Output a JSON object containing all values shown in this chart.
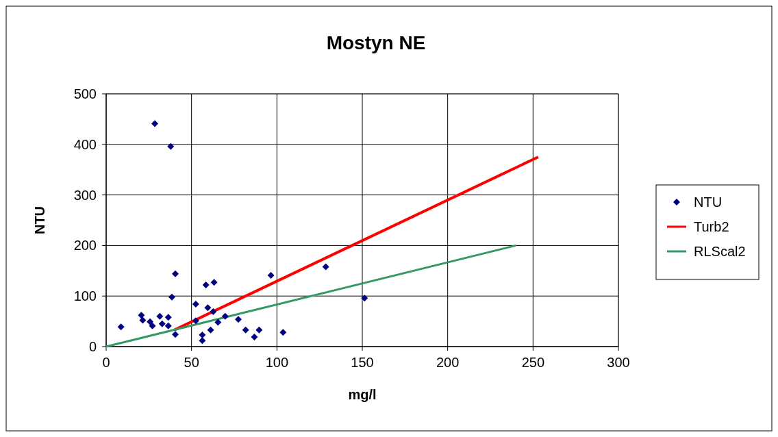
{
  "chart_data": {
    "type": "scatter",
    "title": "Mostyn NE",
    "xlabel": "mg/l",
    "ylabel": "NTU",
    "xlim": [
      0,
      300
    ],
    "ylim": [
      0,
      500
    ],
    "xticks": [
      0,
      50,
      100,
      150,
      200,
      250,
      300
    ],
    "yticks": [
      0,
      100,
      200,
      300,
      400,
      500
    ],
    "grid": true,
    "legend": "right",
    "series": [
      {
        "name": "NTU",
        "marker": "diamond",
        "color": "#000080",
        "x": [
          8.7,
          40.5,
          38.5,
          58.4,
          63.2,
          96.5,
          20.6,
          21.4,
          25.7,
          27.1,
          31.4,
          32.8,
          36.4,
          36.4,
          40.5,
          52.5,
          52.5,
          59.5,
          62.7,
          56.3,
          56.3,
          61.2,
          65.5,
          69.7,
          77.4,
          81.7,
          86.8,
          89.6,
          103.6,
          28.5,
          37.8,
          128.6,
          151.3
        ],
        "values": [
          39,
          144,
          98,
          122,
          127,
          141,
          62,
          52,
          49,
          41,
          60,
          45,
          58,
          41,
          24,
          84,
          51,
          77,
          69,
          23,
          12,
          33,
          48,
          60,
          54,
          33,
          19,
          33,
          28,
          441,
          396,
          158,
          96
        ]
      },
      {
        "name": "Turb2",
        "type": "line",
        "color": "#ff0000",
        "x": [
          40,
          253
        ],
        "values": [
          33,
          375
        ]
      },
      {
        "name": "RLScal2",
        "type": "line",
        "color": "#339966",
        "x": [
          0,
          240
        ],
        "values": [
          0,
          200
        ]
      }
    ]
  }
}
